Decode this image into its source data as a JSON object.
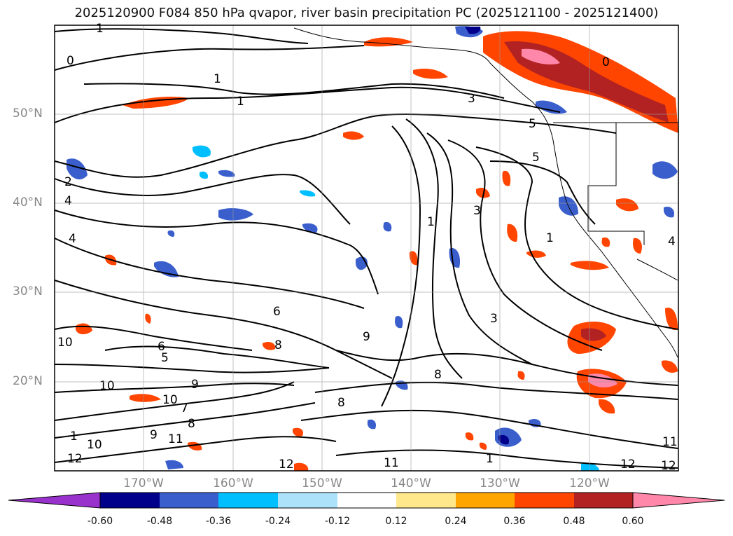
{
  "title": "2025120900 F084 850 hPa qvapor, river basin precipitation PC (2025121100 - 2025121400)",
  "lat_labels": [
    "50°N",
    "40°N",
    "30°N",
    "20°N"
  ],
  "lon_labels": [
    "170°W",
    "160°W",
    "150°W",
    "140°W",
    "130°W",
    "120°W"
  ],
  "map_extent": {
    "lon_min": -180,
    "lon_max": -110,
    "lat_min": 10,
    "lat_max": 60
  },
  "contour_labels": [
    "1",
    "0",
    "1",
    "1",
    "3",
    "5",
    "5",
    "0",
    "2",
    "4",
    "4",
    "3",
    "1",
    "1",
    "6",
    "6",
    "5",
    "8",
    "9",
    "3",
    "8",
    "10",
    "10",
    "9",
    "10",
    "7",
    "8",
    "9",
    "11",
    "1",
    "10",
    "12",
    "12",
    "11",
    "8",
    "1",
    "11",
    "12",
    "12",
    "4"
  ],
  "colorbar": {
    "ticks": [
      "-0.60",
      "-0.48",
      "-0.36",
      "-0.24",
      "-0.12",
      "0.12",
      "0.24",
      "0.36",
      "0.48",
      "0.60"
    ],
    "colors": [
      "#9932CC",
      "#00008B",
      "#3A5FCD",
      "#00BFFF",
      "#ADE3FA",
      "#FFFFFF",
      "#FFE78C",
      "#FFA500",
      "#FF4500",
      "#B22222",
      "#FF88AA"
    ]
  }
}
